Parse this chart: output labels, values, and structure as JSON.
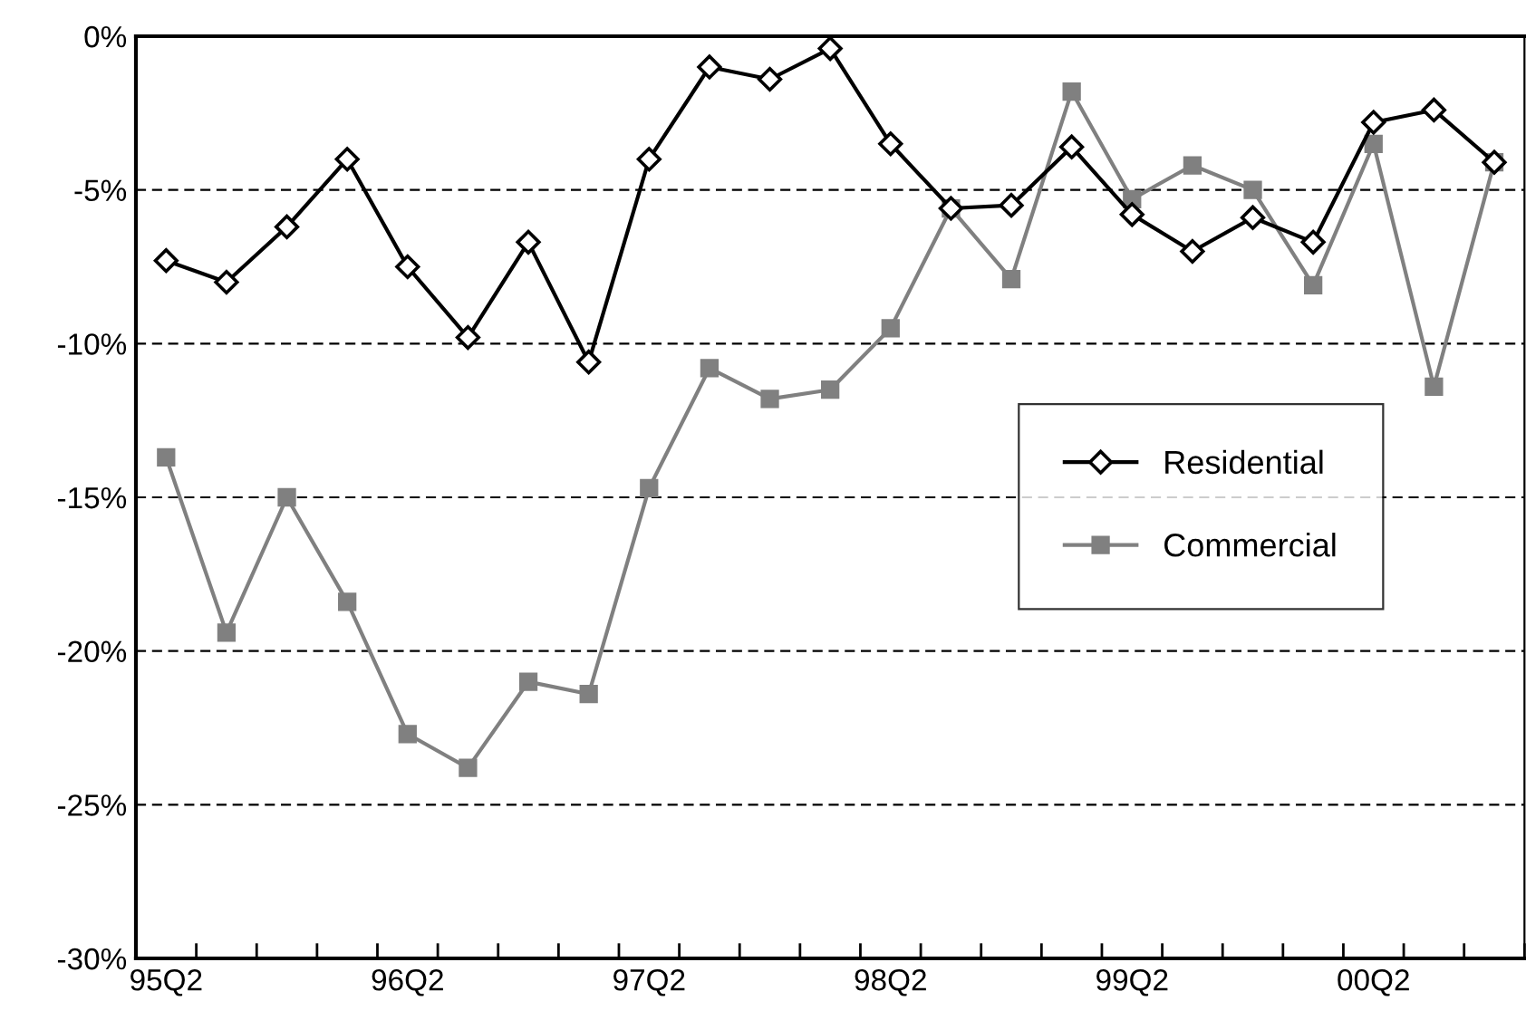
{
  "chart_data": {
    "type": "line",
    "categories": [
      "95Q2",
      null,
      null,
      null,
      "96Q2",
      null,
      null,
      null,
      "97Q2",
      null,
      null,
      null,
      "98Q2",
      null,
      null,
      null,
      "99Q2",
      null,
      null,
      null,
      "00Q2",
      null,
      null
    ],
    "series": [
      {
        "name": "Residential",
        "color": "#000000",
        "marker": "diamond",
        "values": [
          -7.3,
          -8.0,
          -6.2,
          -4.0,
          -7.5,
          -9.8,
          -6.7,
          -10.6,
          -4.0,
          -1.0,
          -1.4,
          -0.4,
          -3.5,
          -5.6,
          -5.5,
          -3.6,
          -5.8,
          -7.0,
          -5.9,
          -6.7,
          -2.8,
          -2.4,
          -4.1
        ]
      },
      {
        "name": "Commercial",
        "color": "#808080",
        "marker": "square",
        "values": [
          -13.7,
          -19.4,
          -15.0,
          -18.4,
          -22.7,
          -23.8,
          -21.0,
          -21.4,
          -14.7,
          -10.8,
          -11.8,
          -11.5,
          -9.5,
          -5.6,
          -7.9,
          -1.8,
          -5.3,
          -4.2,
          -5.0,
          -8.1,
          -3.5,
          -11.4,
          -4.1
        ]
      }
    ],
    "ylim": [
      -30,
      0
    ],
    "yticks": [
      {
        "value": -30,
        "label": "-30%"
      },
      {
        "value": -25,
        "label": "-25%"
      },
      {
        "value": -20,
        "label": "-20%"
      },
      {
        "value": -15,
        "label": "-15%"
      },
      {
        "value": -10,
        "label": "-10%"
      },
      {
        "value": -5,
        "label": "-5%"
      },
      {
        "value": 0,
        "label": "0%"
      }
    ],
    "grid": "y",
    "line_style": "solid",
    "legend": "center right"
  }
}
